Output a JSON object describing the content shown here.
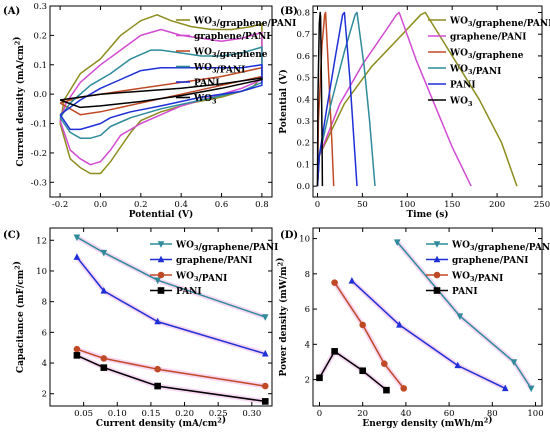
{
  "chart_data": [
    {
      "panel": "(A)",
      "type": "line",
      "xlabel": "Potential (V)",
      "ylabel": "Current density (mA/cm²)",
      "xlim": [
        -0.25,
        0.85
      ],
      "ylim": [
        -0.35,
        0.3
      ],
      "xticks": [
        "-0.2",
        "0.0",
        "0.2",
        "0.4",
        "0.6",
        "0.8"
      ],
      "xtick_values": [
        -0.2,
        0.0,
        0.2,
        0.4,
        0.6,
        0.8
      ],
      "yticks": [
        "-0.3",
        "-0.2",
        "-0.1",
        "0.0",
        "0.1",
        "0.2",
        "0.3"
      ],
      "ytick_values": [
        -0.3,
        -0.2,
        -0.1,
        0.0,
        0.1,
        0.2,
        0.3
      ],
      "legend_position": "top-right",
      "series": [
        {
          "name": "WO3/graphene/PANI",
          "color": "#8c8c1e",
          "x": [
            -0.2,
            -0.18,
            -0.1,
            0.0,
            0.1,
            0.2,
            0.28,
            0.35,
            0.45,
            0.55,
            0.65,
            0.75,
            0.8,
            0.8,
            0.75,
            0.6,
            0.45,
            0.3,
            0.2,
            0.15,
            0.1,
            0.05,
            0.0,
            -0.05,
            -0.1,
            -0.15,
            -0.2
          ],
          "y": [
            -0.1,
            -0.02,
            0.07,
            0.12,
            0.2,
            0.25,
            0.27,
            0.25,
            0.23,
            0.22,
            0.22,
            0.23,
            0.24,
            0.06,
            0.02,
            -0.01,
            -0.03,
            -0.06,
            -0.09,
            -0.13,
            -0.18,
            -0.23,
            -0.27,
            -0.27,
            -0.25,
            -0.22,
            -0.1
          ]
        },
        {
          "name": "graphene/PANI",
          "color": "#d24bd2",
          "x": [
            -0.2,
            -0.17,
            -0.1,
            0.0,
            0.1,
            0.2,
            0.3,
            0.4,
            0.5,
            0.6,
            0.7,
            0.8,
            0.8,
            0.7,
            0.55,
            0.4,
            0.3,
            0.2,
            0.1,
            0.05,
            0.0,
            -0.05,
            -0.1,
            -0.15,
            -0.2
          ],
          "y": [
            -0.09,
            -0.03,
            0.04,
            0.1,
            0.15,
            0.2,
            0.22,
            0.2,
            0.19,
            0.18,
            0.19,
            0.21,
            0.05,
            0.02,
            -0.01,
            -0.04,
            -0.07,
            -0.1,
            -0.14,
            -0.19,
            -0.23,
            -0.24,
            -0.22,
            -0.19,
            -0.09
          ]
        },
        {
          "name": "WO3/graphene",
          "color": "#c04a26",
          "x": [
            -0.2,
            -0.1,
            0.0,
            0.2,
            0.4,
            0.6,
            0.8,
            0.8,
            0.6,
            0.4,
            0.2,
            0.0,
            -0.1,
            -0.2
          ],
          "y": [
            -0.03,
            -0.01,
            0.0,
            0.02,
            0.04,
            0.06,
            0.09,
            0.06,
            0.03,
            0.0,
            -0.03,
            -0.06,
            -0.07,
            -0.03
          ]
        },
        {
          "name": "WO3/PANI",
          "color": "#2e8b9a",
          "x": [
            -0.2,
            -0.15,
            -0.05,
            0.05,
            0.15,
            0.25,
            0.3,
            0.4,
            0.5,
            0.6,
            0.7,
            0.8,
            0.8,
            0.7,
            0.5,
            0.3,
            0.15,
            0.05,
            0.0,
            -0.05,
            -0.1,
            -0.15,
            -0.2
          ],
          "y": [
            -0.08,
            -0.03,
            0.03,
            0.07,
            0.12,
            0.15,
            0.15,
            0.14,
            0.13,
            0.13,
            0.14,
            0.16,
            0.04,
            0.01,
            -0.02,
            -0.05,
            -0.08,
            -0.11,
            -0.14,
            -0.15,
            -0.15,
            -0.13,
            -0.08
          ]
        },
        {
          "name": "PANI",
          "color": "#1e2fd6",
          "x": [
            -0.2,
            -0.1,
            0.0,
            0.1,
            0.2,
            0.3,
            0.4,
            0.5,
            0.6,
            0.7,
            0.8,
            0.8,
            0.7,
            0.5,
            0.3,
            0.15,
            0.05,
            0.0,
            -0.05,
            -0.1,
            -0.15,
            -0.2
          ],
          "y": [
            -0.07,
            -0.02,
            0.02,
            0.05,
            0.08,
            0.09,
            0.09,
            0.09,
            0.09,
            0.09,
            0.1,
            0.03,
            0.01,
            -0.01,
            -0.04,
            -0.06,
            -0.08,
            -0.1,
            -0.11,
            -0.12,
            -0.12,
            -0.07
          ]
        },
        {
          "name": "WO3",
          "color": "#000000",
          "x": [
            -0.2,
            -0.1,
            0.0,
            0.2,
            0.4,
            0.6,
            0.8,
            0.8,
            0.6,
            0.4,
            0.2,
            0.0,
            -0.1,
            -0.2
          ],
          "y": [
            -0.02,
            -0.01,
            0.0,
            0.01,
            0.02,
            0.035,
            0.055,
            0.05,
            0.02,
            -0.005,
            -0.025,
            -0.04,
            -0.045,
            -0.02
          ]
        }
      ]
    },
    {
      "panel": "(B)",
      "type": "line",
      "xlabel": "Time (s)",
      "ylabel": "Potential (V)",
      "xlim": [
        -5,
        250
      ],
      "ylim": [
        -0.05,
        0.83
      ],
      "xticks": [
        "0",
        "50",
        "100",
        "150",
        "200",
        "250"
      ],
      "xtick_values": [
        0,
        50,
        100,
        150,
        200,
        250
      ],
      "yticks": [
        "0.0",
        "0.1",
        "0.2",
        "0.3",
        "0.4",
        "0.5",
        "0.6",
        "0.7",
        "0.8"
      ],
      "ytick_values": [
        0.0,
        0.1,
        0.2,
        0.3,
        0.4,
        0.5,
        0.6,
        0.7,
        0.8
      ],
      "legend_position": "top-right",
      "series": [
        {
          "name": "WO3/graphene/PANI",
          "color": "#8c8c1e",
          "x": [
            0,
            2,
            30,
            60,
            90,
            115,
            120,
            150,
            180,
            205,
            222
          ],
          "y": [
            0.0,
            0.14,
            0.38,
            0.55,
            0.68,
            0.79,
            0.8,
            0.6,
            0.4,
            0.2,
            0.0
          ]
        },
        {
          "name": "graphene/PANI",
          "color": "#d24bd2",
          "x": [
            0,
            2,
            25,
            50,
            75,
            88,
            91,
            110,
            130,
            150,
            171
          ],
          "y": [
            0.0,
            0.14,
            0.38,
            0.56,
            0.71,
            0.79,
            0.8,
            0.58,
            0.38,
            0.18,
            0.0
          ]
        },
        {
          "name": "WO3/graphene",
          "color": "#c04a26",
          "x": [
            0,
            1,
            5,
            8,
            9,
            12,
            16,
            18
          ],
          "y": [
            0.0,
            0.3,
            0.65,
            0.79,
            0.8,
            0.55,
            0.2,
            0.0
          ]
        },
        {
          "name": "WO3/PANI",
          "color": "#2e8b9a",
          "x": [
            0,
            2,
            15,
            30,
            42,
            44,
            52,
            58,
            64
          ],
          "y": [
            0.0,
            0.14,
            0.38,
            0.62,
            0.79,
            0.8,
            0.55,
            0.3,
            0.0
          ]
        },
        {
          "name": "PANI",
          "color": "#1e2fd6",
          "x": [
            0,
            2,
            10,
            20,
            28,
            30,
            36,
            40,
            44
          ],
          "y": [
            0.0,
            0.14,
            0.35,
            0.6,
            0.79,
            0.8,
            0.5,
            0.25,
            0.0
          ]
        },
        {
          "name": "WO3",
          "color": "#000000",
          "x": [
            0,
            0.5,
            2,
            3,
            3.5,
            4,
            5,
            5.5
          ],
          "y": [
            0.0,
            0.4,
            0.75,
            0.8,
            0.78,
            0.6,
            0.25,
            0.0
          ]
        }
      ]
    },
    {
      "panel": "(C)",
      "type": "line",
      "xlabel": "Current density (mA/cm²)",
      "ylabel": "Capacitance (mF/cm²)",
      "xlim": [
        0.0,
        0.33
      ],
      "ylim": [
        1.2,
        12.8
      ],
      "xticks": [
        "0.05",
        "0.10",
        "0.15",
        "0.20",
        "0.25",
        "0.30"
      ],
      "xtick_values": [
        0.05,
        0.1,
        0.15,
        0.2,
        0.25,
        0.3
      ],
      "yticks": [
        "2",
        "4",
        "6",
        "8",
        "10",
        "12"
      ],
      "ytick_values": [
        2,
        4,
        6,
        8,
        10,
        12
      ],
      "legend_position": "top-right",
      "series": [
        {
          "name": "WO3/graphene/PANI",
          "color": "#2e8b9a",
          "marker": "triangle-down",
          "x": [
            0.04,
            0.08,
            0.16,
            0.32
          ],
          "y": [
            12.2,
            11.2,
            9.4,
            7.0
          ]
        },
        {
          "name": "graphene/PANI",
          "color": "#1e2fd6",
          "marker": "triangle-up",
          "x": [
            0.04,
            0.08,
            0.16,
            0.32
          ],
          "y": [
            10.9,
            8.7,
            6.7,
            4.6
          ]
        },
        {
          "name": "WO3/PANI",
          "color": "#c04a26",
          "marker": "circle",
          "x": [
            0.04,
            0.08,
            0.16,
            0.32
          ],
          "y": [
            4.9,
            4.3,
            3.6,
            2.5
          ]
        },
        {
          "name": "PANI",
          "color": "#000000",
          "marker": "square",
          "x": [
            0.04,
            0.08,
            0.16,
            0.32
          ],
          "y": [
            4.5,
            3.7,
            2.5,
            1.5
          ]
        }
      ]
    },
    {
      "panel": "(D)",
      "type": "line",
      "xlabel": "Energy density (mWh/m²)",
      "ylabel": "Power density (mW/m²)",
      "xlim": [
        -3,
        103
      ],
      "ylim": [
        0.5,
        10.6
      ],
      "xticks": [
        "0",
        "20",
        "40",
        "60",
        "80",
        "100"
      ],
      "xtick_values": [
        0,
        20,
        40,
        60,
        80,
        100
      ],
      "yticks": [
        "2",
        "4",
        "6",
        "8",
        "10"
      ],
      "ytick_values": [
        2,
        4,
        6,
        8,
        10
      ],
      "legend_position": "top-right",
      "series": [
        {
          "name": "WO3/graphene/PANI",
          "color": "#2e8b9a",
          "marker": "triangle-down",
          "x": [
            36,
            65,
            90,
            98
          ],
          "y": [
            9.8,
            5.6,
            3.0,
            1.5
          ]
        },
        {
          "name": "graphene/PANI",
          "color": "#1e2fd6",
          "marker": "triangle-up",
          "x": [
            15,
            37,
            64,
            86
          ],
          "y": [
            7.6,
            5.1,
            2.8,
            1.5
          ]
        },
        {
          "name": "WO3/PANI",
          "color": "#c04a26",
          "marker": "circle",
          "x": [
            7,
            20,
            30,
            39
          ],
          "y": [
            7.5,
            5.1,
            2.9,
            1.5
          ]
        },
        {
          "name": "PANI",
          "color": "#000000",
          "marker": "square",
          "x": [
            0,
            7,
            20,
            31
          ],
          "y": [
            2.1,
            3.6,
            2.5,
            1.4
          ]
        }
      ]
    }
  ]
}
